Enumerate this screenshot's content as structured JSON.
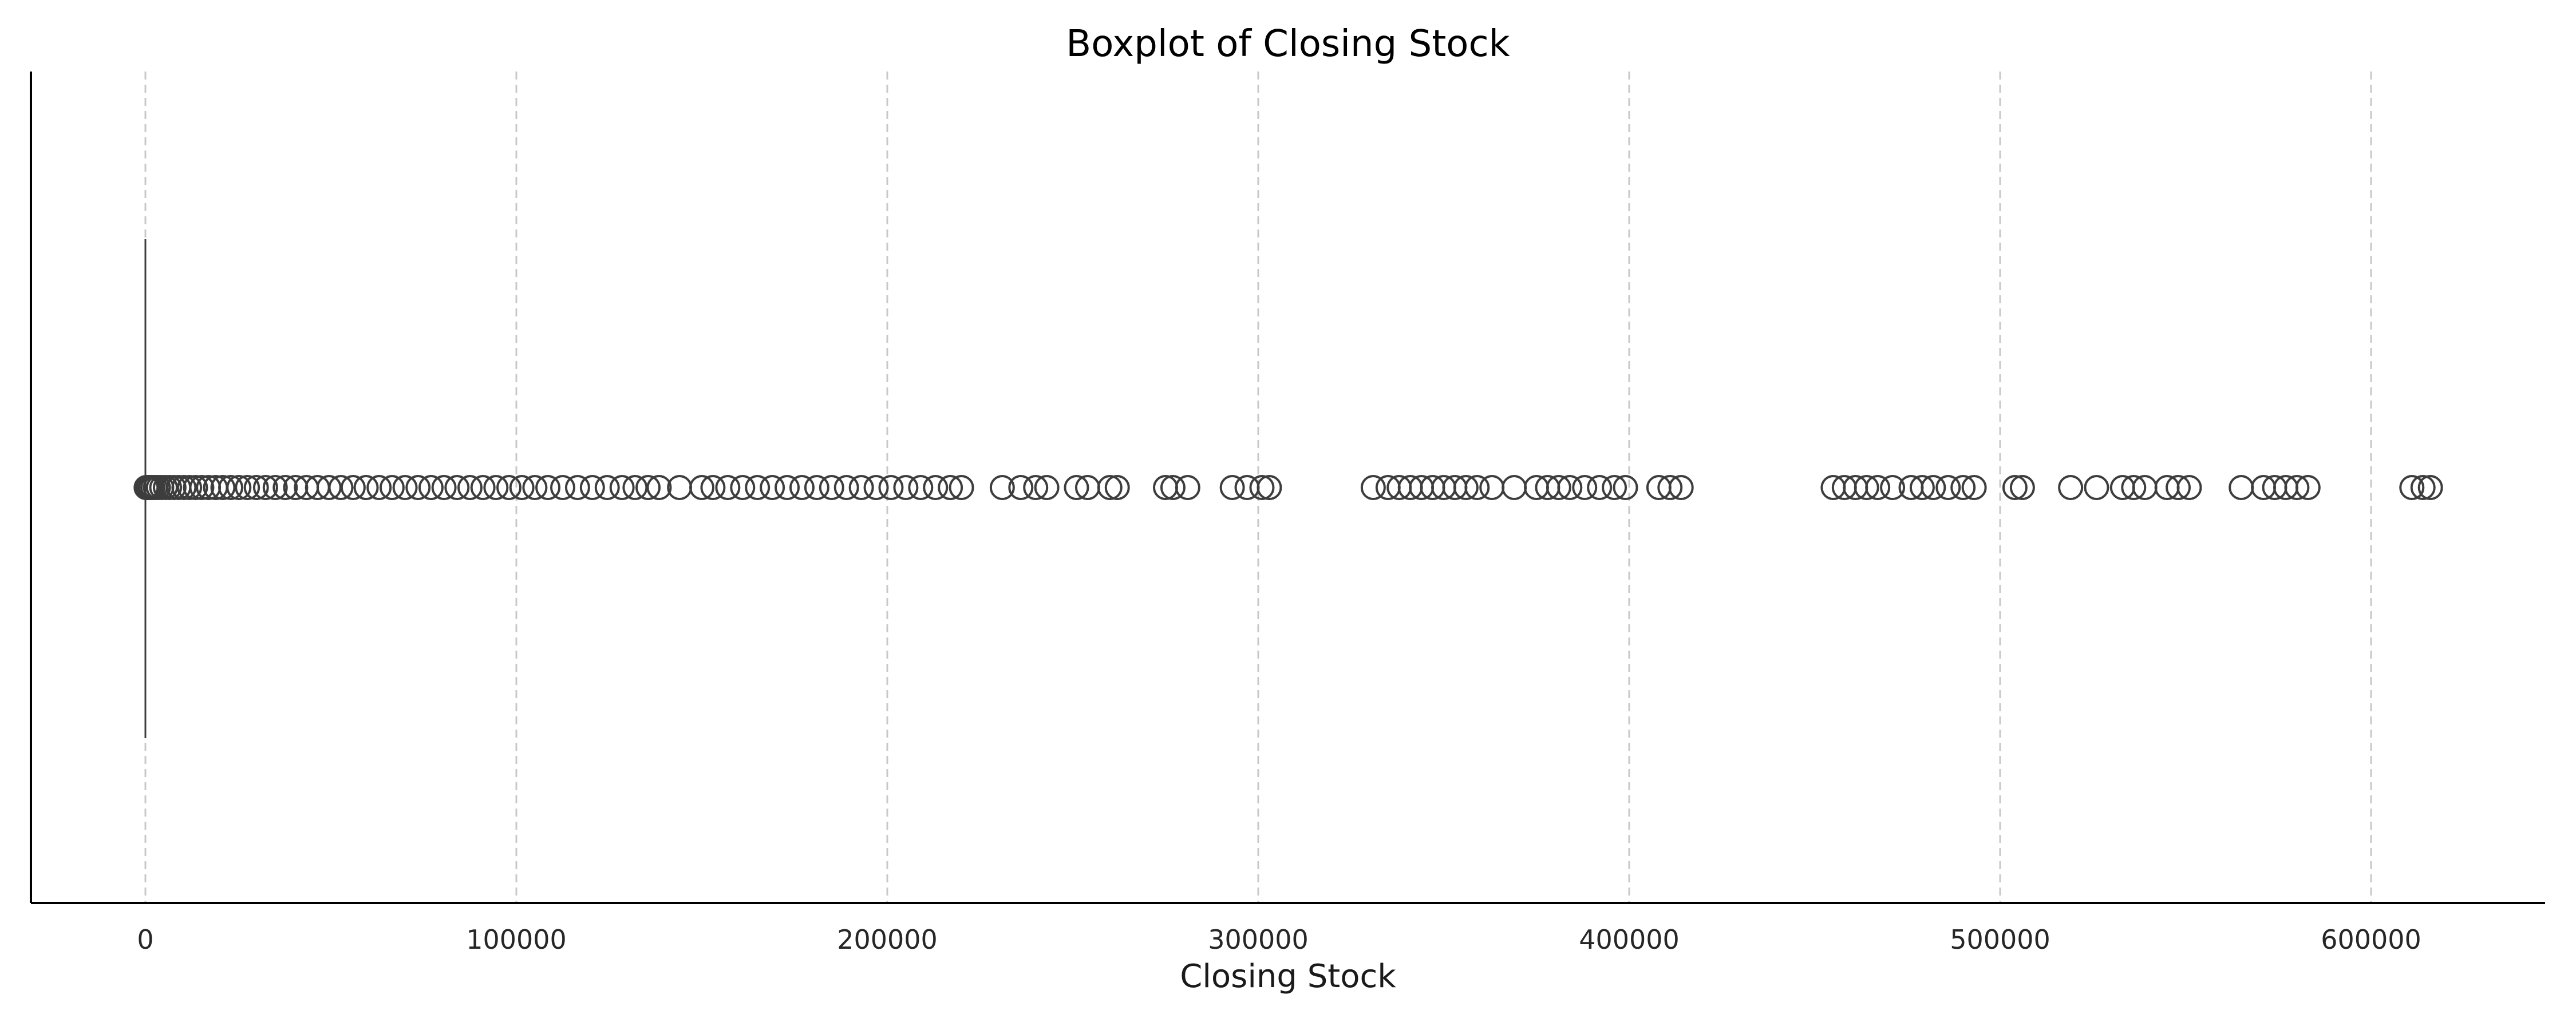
{
  "chart_data": {
    "type": "boxplot",
    "title": "Boxplot of Closing Stock",
    "xlabel": "Closing Stock",
    "ylabel": "",
    "xlim": [
      -31000,
      646000
    ],
    "xticks": [
      0,
      100000,
      200000,
      300000,
      400000,
      500000,
      600000
    ],
    "xtick_labels": [
      "0",
      "100000",
      "200000",
      "300000",
      "400000",
      "500000",
      "600000"
    ],
    "grid": {
      "x": true,
      "y": false,
      "style": "dashed"
    },
    "orientation": "horizontal",
    "color": "#3d3d3d",
    "box": {
      "min": 0,
      "q1": 0,
      "median": 0,
      "q3": 0,
      "max": 0
    },
    "outliers": [
      200,
      500,
      900,
      1400,
      2000,
      2700,
      3500,
      4400,
      5400,
      6500,
      7700,
      9000,
      10400,
      11900,
      13500,
      15200,
      17000,
      18900,
      20900,
      23000,
      25200,
      27500,
      29900,
      32400,
      35000,
      37700,
      40500,
      43400,
      46400,
      49500,
      52700,
      56000,
      59500,
      63000,
      66500,
      70000,
      73500,
      77000,
      80500,
      84000,
      87500,
      91000,
      94500,
      98000,
      101500,
      105000,
      108500,
      112500,
      116500,
      120500,
      124500,
      128500,
      132000,
      135500,
      138500,
      144000,
      150000,
      153000,
      157000,
      161000,
      165000,
      169000,
      173000,
      177000,
      181000,
      185000,
      189000,
      193000,
      197000,
      201000,
      205000,
      209000,
      213000,
      217000,
      220000,
      231000,
      236000,
      240000,
      243000,
      251000,
      254000,
      260000,
      262000,
      275000,
      277000,
      281000,
      293000,
      297000,
      301000,
      303000,
      331000,
      335000,
      338000,
      341000,
      344000,
      347000,
      350000,
      353000,
      356000,
      359000,
      363000,
      369000,
      375000,
      378000,
      381000,
      384000,
      388000,
      392000,
      396000,
      399000,
      408000,
      411000,
      414000,
      455000,
      458000,
      461000,
      464000,
      467000,
      471000,
      476000,
      479000,
      482000,
      486000,
      490000,
      493000,
      504000,
      506000,
      519000,
      526000,
      533000,
      536000,
      539000,
      545000,
      548000,
      551000,
      565000,
      571000,
      574000,
      577000,
      580000,
      583000,
      611000,
      614000,
      616000
    ]
  }
}
